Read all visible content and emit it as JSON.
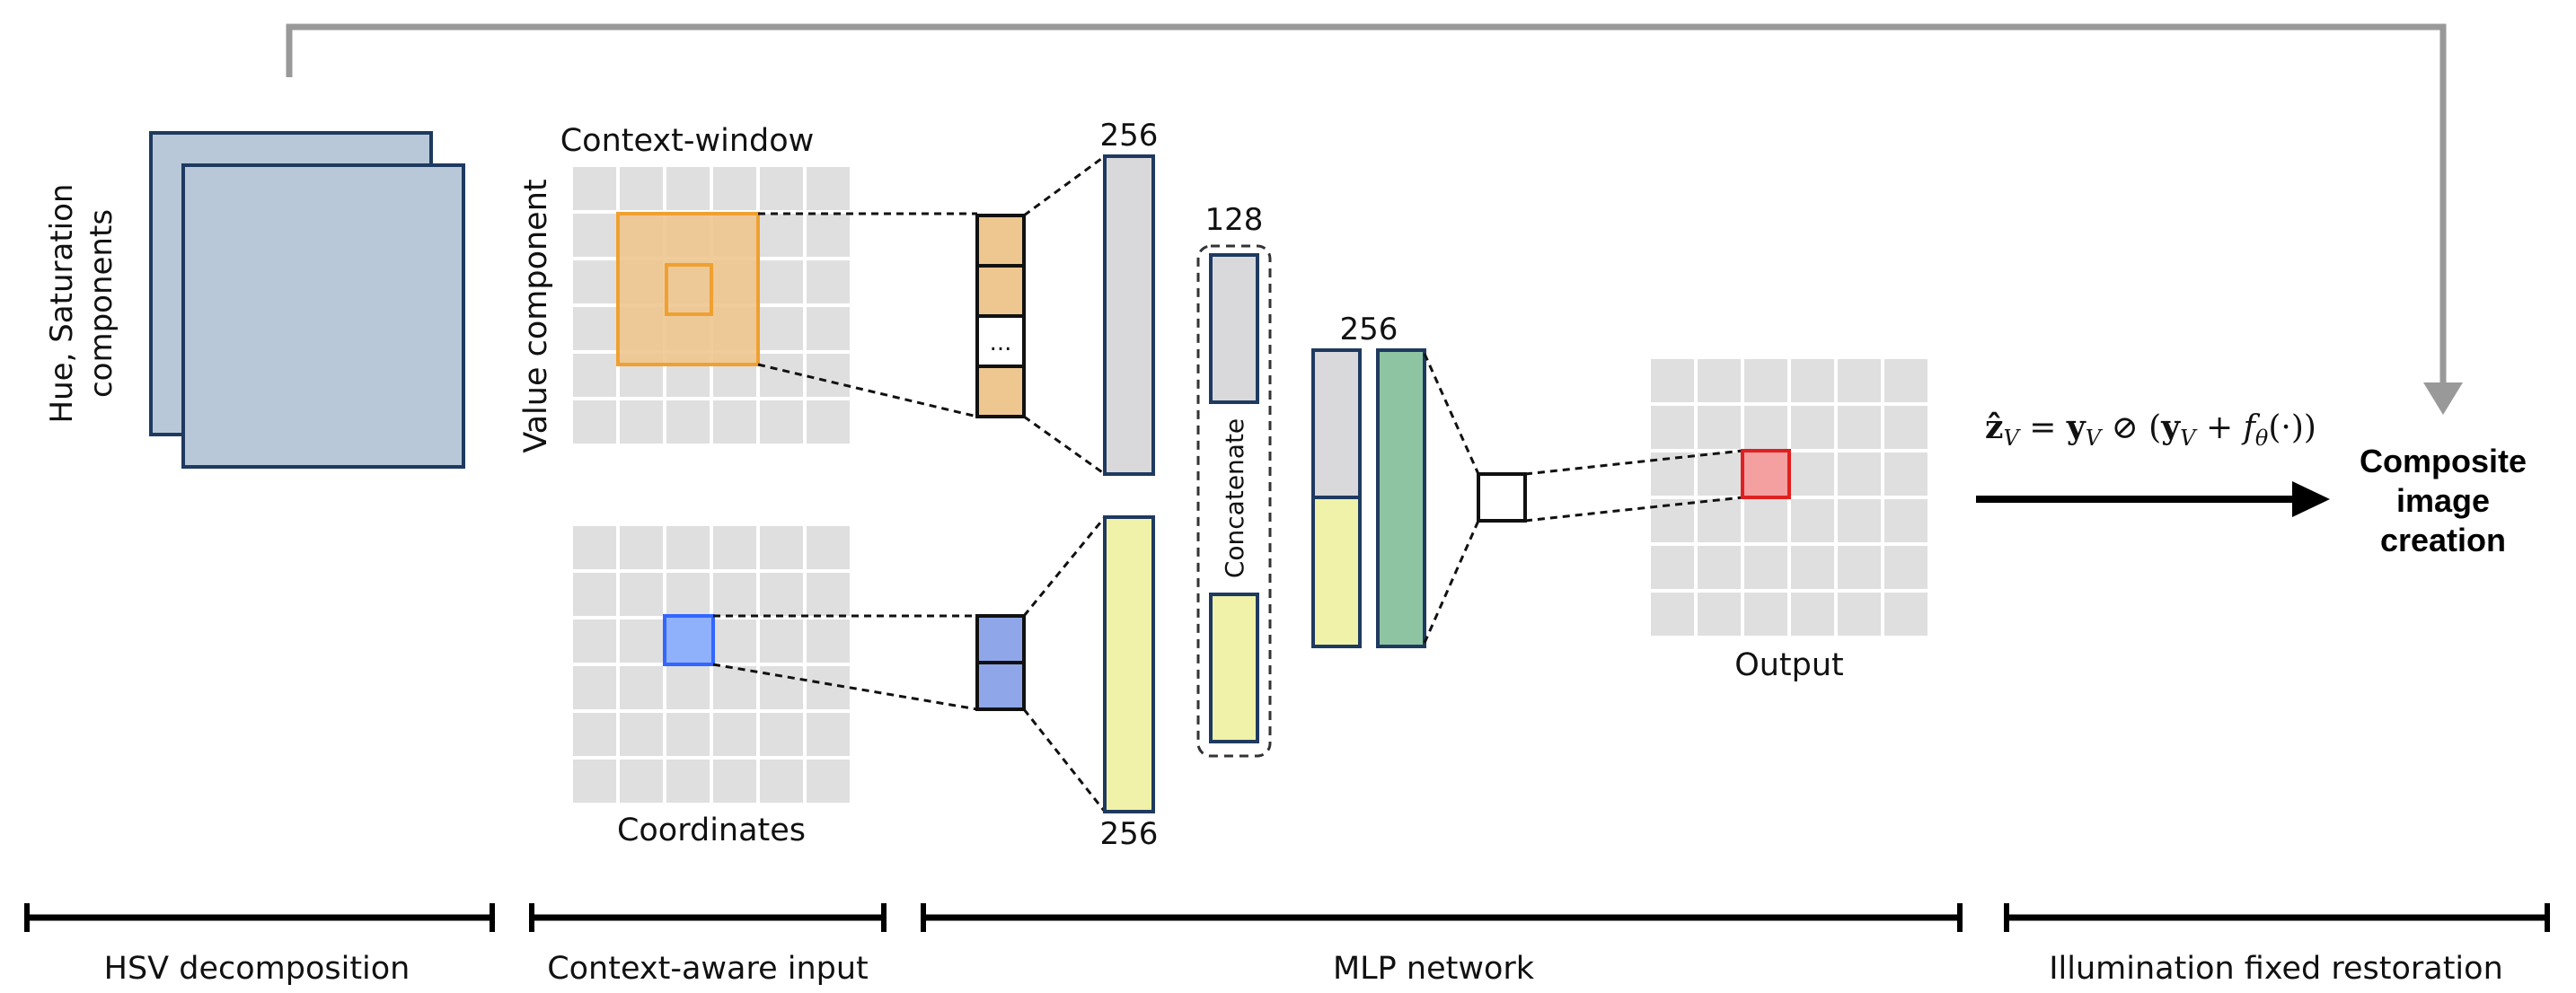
{
  "labels": {
    "hue_saturation_line1": "Hue, Saturation",
    "hue_saturation_line2": "components",
    "context_window": "Context-window",
    "value_component": "Value component",
    "coordinates": "Coordinates",
    "ellipsis": "...",
    "dim_256_top": "256",
    "dim_256_bottom": "256",
    "dim_128": "128",
    "dim_256_mlp": "256",
    "concatenate": "Concatenate",
    "output": "Output",
    "composite_line1": "Composite",
    "composite_line2": "image",
    "composite_line3": "creation"
  },
  "formula": {
    "lhs": "ẑ",
    "lhs_sub": "V",
    "eq": " = ",
    "y1": "y",
    "y1_sub": "V",
    "op": " ⊘ (",
    "y2": "y",
    "y2_sub": "V",
    "plus": " + ",
    "f": "f",
    "f_sub": "θ",
    "tail": "(·))"
  },
  "stages": [
    {
      "label": "HSV decomposition"
    },
    {
      "label": "Context-aware input"
    },
    {
      "label": "MLP network"
    },
    {
      "label": "Illumination fixed restoration"
    }
  ],
  "colors": {
    "hsv_fill": "#b8c8d8",
    "navy_stroke": "#1f3a60",
    "orange_fill": "#eec690",
    "orange_stroke": "#f0a030",
    "blue_fill": "#8fa6e8",
    "blue_stroke": "#3366ff",
    "gray_fill": "#d9d9db",
    "yellow_fill": "#eff2a8",
    "green_fill": "#8ec4a2",
    "red_fill": "#f5a0a0",
    "red_stroke": "#e02020",
    "grid_cell": "#dfdfdf",
    "skip_arrow": "#999999"
  }
}
